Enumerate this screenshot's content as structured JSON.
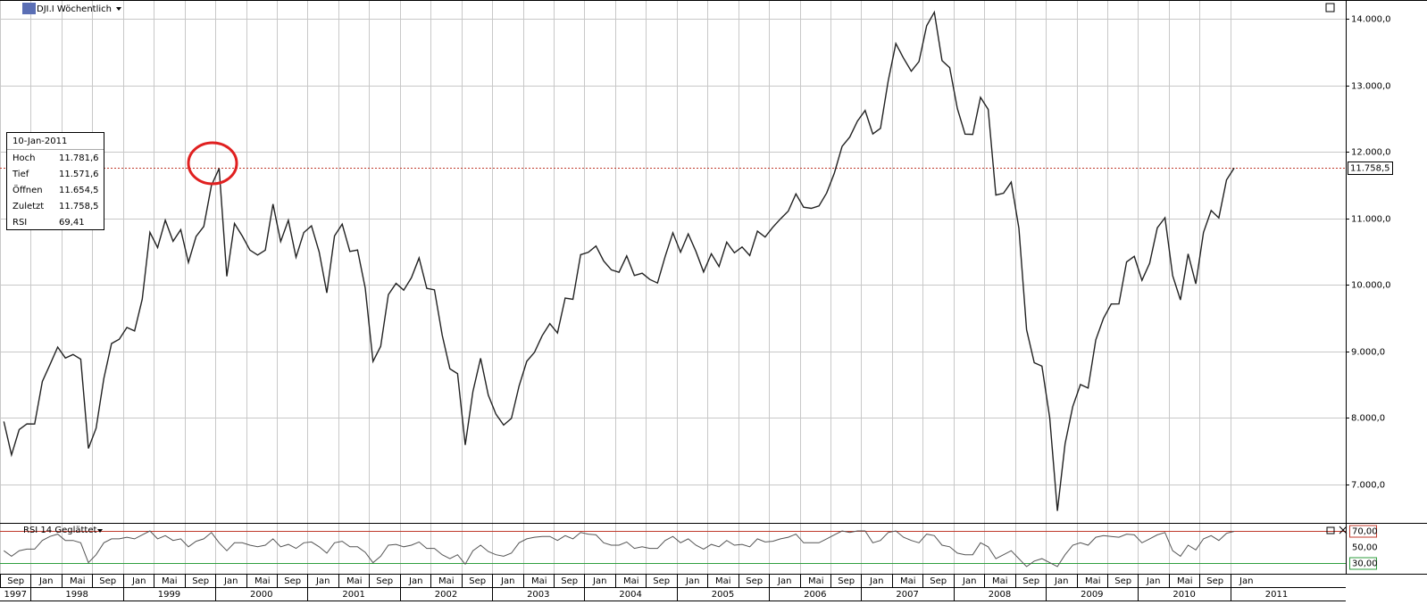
{
  "header": "DJI.I Wöchentlich",
  "info_box": {
    "date": "10-Jan-2011",
    "rows": [
      [
        "Hoch",
        "11.781,6"
      ],
      [
        "Tief",
        "11.571,6"
      ],
      [
        "Öffnen",
        "11.654,5"
      ],
      [
        "Zuletzt",
        "11.758,5"
      ],
      [
        "RSI",
        "69,41"
      ]
    ]
  },
  "chart_data": [
    {
      "type": "line",
      "xlim": [
        "1997-09",
        "2012-04"
      ],
      "ylim": [
        6420,
        14270
      ],
      "yticks": [
        {
          "value": 7000,
          "label": "7.000,0"
        },
        {
          "value": 8000,
          "label": "8.000,0"
        },
        {
          "value": 9000,
          "label": "9.000,0"
        },
        {
          "value": 10000,
          "label": "10.000,0"
        },
        {
          "value": 11000,
          "label": "11.000,0"
        },
        {
          "value": 12000,
          "label": "12.000,0"
        },
        {
          "value": 13000,
          "label": "13.000,0"
        },
        {
          "value": 14000,
          "label": "14.000,0"
        }
      ],
      "last": {
        "value": 11758.5,
        "label": "11.758,5"
      },
      "grid": true,
      "xticks": [
        {
          "value": "1997-09",
          "label": "Sep"
        },
        {
          "value": "1998-01",
          "label": "Jan"
        },
        {
          "value": "1998-05",
          "label": "Mai"
        },
        {
          "value": "1998-09",
          "label": "Sep"
        },
        {
          "value": "1999-01",
          "label": "Jan"
        },
        {
          "value": "1999-05",
          "label": "Mai"
        },
        {
          "value": "1999-09",
          "label": "Sep"
        },
        {
          "value": "2000-01",
          "label": "Jan"
        },
        {
          "value": "2000-05",
          "label": "Mai"
        },
        {
          "value": "2000-09",
          "label": "Sep"
        },
        {
          "value": "2001-01",
          "label": "Jan"
        },
        {
          "value": "2001-05",
          "label": "Mai"
        },
        {
          "value": "2001-09",
          "label": "Sep"
        },
        {
          "value": "2002-01",
          "label": "Jan"
        },
        {
          "value": "2002-05",
          "label": "Mai"
        },
        {
          "value": "2002-09",
          "label": "Sep"
        },
        {
          "value": "2003-01",
          "label": "Jan"
        },
        {
          "value": "2003-05",
          "label": "Mai"
        },
        {
          "value": "2003-09",
          "label": "Sep"
        },
        {
          "value": "2004-01",
          "label": "Jan"
        },
        {
          "value": "2004-05",
          "label": "Mai"
        },
        {
          "value": "2004-09",
          "label": "Sep"
        },
        {
          "value": "2005-01",
          "label": "Jan"
        },
        {
          "value": "2005-05",
          "label": "Mai"
        },
        {
          "value": "2005-09",
          "label": "Sep"
        },
        {
          "value": "2006-01",
          "label": "Jan"
        },
        {
          "value": "2006-05",
          "label": "Mai"
        },
        {
          "value": "2006-09",
          "label": "Sep"
        },
        {
          "value": "2007-01",
          "label": "Jan"
        },
        {
          "value": "2007-05",
          "label": "Mai"
        },
        {
          "value": "2007-09",
          "label": "Sep"
        },
        {
          "value": "2008-01",
          "label": "Jan"
        },
        {
          "value": "2008-05",
          "label": "Mai"
        },
        {
          "value": "2008-09",
          "label": "Sep"
        },
        {
          "value": "2009-01",
          "label": "Jan"
        },
        {
          "value": "2009-05",
          "label": "Mai"
        },
        {
          "value": "2009-09",
          "label": "Sep"
        },
        {
          "value": "2010-01",
          "label": "Jan"
        },
        {
          "value": "2010-05",
          "label": "Mai"
        },
        {
          "value": "2010-09",
          "label": "Sep"
        },
        {
          "value": "2011-01",
          "label": "Jan"
        }
      ],
      "years": [
        "1997",
        "1998",
        "1999",
        "2000",
        "2001",
        "2002",
        "2003",
        "2004",
        "2005",
        "2006",
        "2007",
        "2008",
        "2009",
        "2010",
        "2011"
      ],
      "x": [
        "1997-09",
        "1997-10",
        "1997-11",
        "1997-12",
        "1998-01",
        "1998-02",
        "1998-03",
        "1998-04",
        "1998-05",
        "1998-06",
        "1998-07",
        "1998-08",
        "1998-09",
        "1998-10",
        "1998-11",
        "1998-12",
        "1999-01",
        "1999-02",
        "1999-03",
        "1999-04",
        "1999-05",
        "1999-06",
        "1999-07",
        "1999-08",
        "1999-09",
        "1999-10",
        "1999-11",
        "1999-12",
        "2000-01",
        "2000-02",
        "2000-03",
        "2000-04",
        "2000-05",
        "2000-06",
        "2000-07",
        "2000-08",
        "2000-09",
        "2000-10",
        "2000-11",
        "2000-12",
        "2001-01",
        "2001-02",
        "2001-03",
        "2001-04",
        "2001-05",
        "2001-06",
        "2001-07",
        "2001-08",
        "2001-09",
        "2001-10",
        "2001-11",
        "2001-12",
        "2002-01",
        "2002-02",
        "2002-03",
        "2002-04",
        "2002-05",
        "2002-06",
        "2002-07",
        "2002-08",
        "2002-09",
        "2002-10",
        "2002-11",
        "2002-12",
        "2003-01",
        "2003-02",
        "2003-03",
        "2003-04",
        "2003-05",
        "2003-06",
        "2003-07",
        "2003-08",
        "2003-09",
        "2003-10",
        "2003-11",
        "2003-12",
        "2004-01",
        "2004-02",
        "2004-03",
        "2004-04",
        "2004-05",
        "2004-06",
        "2004-07",
        "2004-08",
        "2004-09",
        "2004-10",
        "2004-11",
        "2004-12",
        "2005-01",
        "2005-02",
        "2005-03",
        "2005-04",
        "2005-05",
        "2005-06",
        "2005-07",
        "2005-08",
        "2005-09",
        "2005-10",
        "2005-11",
        "2005-12",
        "2006-01",
        "2006-02",
        "2006-03",
        "2006-04",
        "2006-05",
        "2006-06",
        "2006-07",
        "2006-08",
        "2006-09",
        "2006-10",
        "2006-11",
        "2006-12",
        "2007-01",
        "2007-02",
        "2007-03",
        "2007-04",
        "2007-05",
        "2007-06",
        "2007-07",
        "2007-08",
        "2007-09",
        "2007-10",
        "2007-11",
        "2007-12",
        "2008-01",
        "2008-02",
        "2008-03",
        "2008-04",
        "2008-05",
        "2008-06",
        "2008-07",
        "2008-08",
        "2008-09",
        "2008-10",
        "2008-11",
        "2008-12",
        "2009-01",
        "2009-02",
        "2009-03",
        "2009-04",
        "2009-05",
        "2009-06",
        "2009-07",
        "2009-08",
        "2009-09",
        "2009-10",
        "2009-11",
        "2009-12",
        "2010-01",
        "2010-02",
        "2010-03",
        "2010-04",
        "2010-05",
        "2010-06",
        "2010-07",
        "2010-08",
        "2010-09",
        "2010-10",
        "2010-11",
        "2010-12",
        "2011-01"
      ],
      "series": [
        {
          "name": "DJI.I",
          "color": "#222222",
          "values": [
            7945,
            7442,
            7823,
            7908,
            7907,
            8546,
            8800,
            9063,
            8900,
            8952,
            8883,
            7539,
            7843,
            8592,
            9117,
            9181,
            9359,
            9307,
            9786,
            10789,
            10560,
            10971,
            10655,
            10829,
            10337,
            10729,
            10878,
            11497,
            11750,
            10128,
            10922,
            10734,
            10522,
            10448,
            10522,
            11215,
            10651,
            10971,
            10415,
            10787,
            10887,
            10495,
            9879,
            10735,
            10912,
            10502,
            10523,
            9950,
            8848,
            9075,
            9852,
            10022,
            9920,
            10106,
            10404,
            9946,
            9925,
            9243,
            8737,
            8664,
            7592,
            8397,
            8896,
            8342,
            8054,
            7891,
            7992,
            8480,
            8850,
            8985,
            9234,
            9416,
            9275,
            9801,
            9782,
            10454,
            10488,
            10584,
            10358,
            10226,
            10188,
            10435,
            10140,
            10174,
            10080,
            10027,
            10428,
            10783,
            10490,
            10766,
            10504,
            10193,
            10467,
            10275,
            10641,
            10482,
            10569,
            10440,
            10806,
            10718,
            10865,
            10993,
            11109,
            11367,
            11168,
            11150,
            11186,
            11381,
            11679,
            12081,
            12222,
            12463,
            12622,
            12269,
            12354,
            13063,
            13628,
            13409,
            13212,
            13358,
            13896,
            14100,
            13372,
            13265,
            12650,
            12266,
            12263,
            12820,
            12638,
            11350,
            11378,
            11544,
            10851,
            9325,
            8829,
            8776,
            8001,
            6600,
            7609,
            8168,
            8500,
            8447,
            9172,
            9496,
            9712,
            9713,
            10345,
            10428,
            10067,
            10325,
            10857,
            11009,
            10137,
            9774,
            10466,
            10015,
            10788,
            11118,
            11006,
            11578,
            11758.5
          ]
        }
      ]
    },
    {
      "type": "line",
      "title": "RSI 14 Geglättet",
      "xlim": [
        "1997-09",
        "2012-04"
      ],
      "ylim": [
        16,
        79
      ],
      "yticks": [
        {
          "value": 30,
          "label": "30,00"
        },
        {
          "value": 50,
          "label": "50,00"
        },
        {
          "value": 70,
          "label": "70,00"
        }
      ],
      "upper": {
        "value": 70,
        "color": "#c0392b"
      },
      "lower": {
        "value": 30,
        "color": "#2e9e3e"
      },
      "x": [
        "1997-09",
        "1997-10",
        "1997-11",
        "1997-12",
        "1998-01",
        "1998-02",
        "1998-03",
        "1998-04",
        "1998-05",
        "1998-06",
        "1998-07",
        "1998-08",
        "1998-09",
        "1998-10",
        "1998-11",
        "1998-12",
        "1999-01",
        "1999-02",
        "1999-03",
        "1999-04",
        "1999-05",
        "1999-06",
        "1999-07",
        "1999-08",
        "1999-09",
        "1999-10",
        "1999-11",
        "1999-12",
        "2000-01",
        "2000-02",
        "2000-03",
        "2000-04",
        "2000-05",
        "2000-06",
        "2000-07",
        "2000-08",
        "2000-09",
        "2000-10",
        "2000-11",
        "2000-12",
        "2001-01",
        "2001-02",
        "2001-03",
        "2001-04",
        "2001-05",
        "2001-06",
        "2001-07",
        "2001-08",
        "2001-09",
        "2001-10",
        "2001-11",
        "2001-12",
        "2002-01",
        "2002-02",
        "2002-03",
        "2002-04",
        "2002-05",
        "2002-06",
        "2002-07",
        "2002-08",
        "2002-09",
        "2002-10",
        "2002-11",
        "2002-12",
        "2003-01",
        "2003-02",
        "2003-03",
        "2003-04",
        "2003-05",
        "2003-06",
        "2003-07",
        "2003-08",
        "2003-09",
        "2003-10",
        "2003-11",
        "2003-12",
        "2004-01",
        "2004-02",
        "2004-03",
        "2004-04",
        "2004-05",
        "2004-06",
        "2004-07",
        "2004-08",
        "2004-09",
        "2004-10",
        "2004-11",
        "2004-12",
        "2005-01",
        "2005-02",
        "2005-03",
        "2005-04",
        "2005-05",
        "2005-06",
        "2005-07",
        "2005-08",
        "2005-09",
        "2005-10",
        "2005-11",
        "2005-12",
        "2006-01",
        "2006-02",
        "2006-03",
        "2006-04",
        "2006-05",
        "2006-06",
        "2006-07",
        "2006-08",
        "2006-09",
        "2006-10",
        "2006-11",
        "2006-12",
        "2007-01",
        "2007-02",
        "2007-03",
        "2007-04",
        "2007-05",
        "2007-06",
        "2007-07",
        "2007-08",
        "2007-09",
        "2007-10",
        "2007-11",
        "2007-12",
        "2008-01",
        "2008-02",
        "2008-03",
        "2008-04",
        "2008-05",
        "2008-06",
        "2008-07",
        "2008-08",
        "2008-09",
        "2008-10",
        "2008-11",
        "2008-12",
        "2009-01",
        "2009-02",
        "2009-03",
        "2009-04",
        "2009-05",
        "2009-06",
        "2009-07",
        "2009-08",
        "2009-09",
        "2009-10",
        "2009-11",
        "2009-12",
        "2010-01",
        "2010-02",
        "2010-03",
        "2010-04",
        "2010-05",
        "2010-06",
        "2010-07",
        "2010-08",
        "2010-09",
        "2010-10",
        "2010-11",
        "2010-12",
        "2011-01"
      ],
      "series": [
        {
          "name": "RSI",
          "color": "#555555",
          "values": [
            45,
            38,
            45,
            47,
            47,
            58,
            63,
            66,
            58,
            58,
            55,
            30,
            40,
            55,
            60,
            60,
            62,
            60,
            65,
            70,
            60,
            64,
            58,
            60,
            50,
            57,
            60,
            68,
            55,
            45,
            55,
            55,
            52,
            50,
            52,
            60,
            50,
            53,
            48,
            55,
            56,
            50,
            42,
            55,
            57,
            50,
            50,
            43,
            30,
            38,
            52,
            53,
            50,
            52,
            56,
            48,
            48,
            40,
            35,
            40,
            28,
            45,
            52,
            44,
            40,
            38,
            42,
            55,
            60,
            62,
            63,
            63,
            58,
            64,
            60,
            68,
            66,
            65,
            55,
            52,
            52,
            56,
            48,
            50,
            48,
            48,
            58,
            63,
            55,
            60,
            52,
            47,
            53,
            50,
            58,
            52,
            53,
            50,
            60,
            56,
            57,
            60,
            62,
            66,
            55,
            55,
            55,
            60,
            65,
            70,
            68,
            70,
            70,
            55,
            58,
            68,
            70,
            62,
            58,
            55,
            66,
            64,
            52,
            50,
            42,
            40,
            40,
            55,
            50,
            35,
            40,
            45,
            35,
            25,
            32,
            35,
            30,
            25,
            40,
            52,
            55,
            52,
            62,
            64,
            63,
            62,
            66,
            65,
            55,
            60,
            65,
            68,
            45,
            38,
            52,
            46,
            60,
            64,
            58,
            67,
            69.41
          ]
        }
      ]
    }
  ]
}
